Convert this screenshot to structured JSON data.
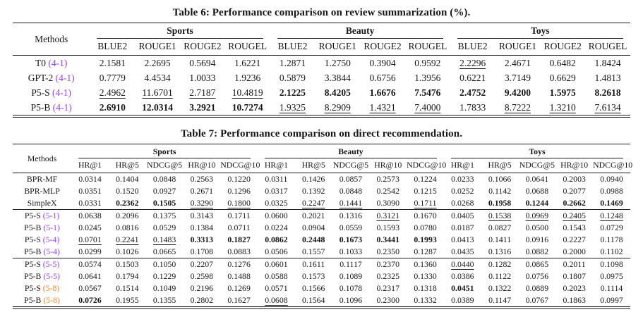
{
  "colors": {
    "purple": "#9440e8",
    "orange": "#e8862d",
    "text": "#161616"
  },
  "tables": [
    {
      "title": "Table 6: Performance comparison on review summarization (%).",
      "methods_header": "Methods",
      "groups": [
        "Sports",
        "Beauty",
        "Toys"
      ],
      "subcolumns": [
        "BLUE2",
        "ROUGE1",
        "ROUGE2",
        "ROUGEL"
      ],
      "row_groups": [
        {
          "rows": [
            {
              "method": "T0",
              "variant": "(4-1)",
              "variant_color": "purple",
              "values": [
                "2.1581",
                "2.2695",
                "0.5694",
                "1.6221",
                "1.2871",
                "1.2750",
                "0.3904",
                "0.9592",
                "2.2296",
                "2.4671",
                "0.6482",
                "1.8424"
              ],
              "styles": [
                "",
                "",
                "",
                "",
                "",
                "",
                "",
                "",
                "u",
                "",
                "",
                ""
              ]
            },
            {
              "method": "GPT-2",
              "variant": "(4-1)",
              "variant_color": "purple",
              "values": [
                "0.7779",
                "4.4534",
                "1.0033",
                "1.9236",
                "0.5879",
                "3.3844",
                "0.6756",
                "1.3956",
                "0.6221",
                "3.7149",
                "0.6629",
                "1.4813"
              ],
              "styles": [
                "",
                "",
                "",
                "",
                "",
                "",
                "",
                "",
                "",
                "",
                "",
                ""
              ]
            },
            {
              "method": "P5-S",
              "variant": "(4-1)",
              "variant_color": "purple",
              "values": [
                "2.4962",
                "11.6701",
                "2.7187",
                "10.4819",
                "2.1225",
                "8.4205",
                "1.6676",
                "7.5476",
                "2.4752",
                "9.4200",
                "1.5975",
                "8.2618"
              ],
              "styles": [
                "u",
                "u",
                "u",
                "u",
                "b",
                "b",
                "b",
                "b",
                "b",
                "b",
                "b",
                "b"
              ]
            },
            {
              "method": "P5-B",
              "variant": "(4-1)",
              "variant_color": "purple",
              "values": [
                "2.6910",
                "12.0314",
                "3.2921",
                "10.7274",
                "1.9325",
                "8.2909",
                "1.4321",
                "7.4000",
                "1.7833",
                "8.7222",
                "1.3210",
                "7.6134"
              ],
              "styles": [
                "b",
                "b",
                "b",
                "b",
                "u",
                "u",
                "u",
                "u",
                "",
                "u",
                "u",
                "u"
              ]
            }
          ]
        }
      ]
    },
    {
      "title": "Table 7: Performance comparison on direct recommendation.",
      "methods_header": "Methods",
      "groups": [
        "Sports",
        "Beauty",
        "Toys"
      ],
      "subcolumns": [
        "HR@1",
        "HR@5",
        "NDCG@5",
        "HR@10",
        "NDCG@10"
      ],
      "row_groups": [
        {
          "rows": [
            {
              "method": "BPR-MF",
              "variant": "",
              "variant_color": "",
              "values": [
                "0.0314",
                "0.1404",
                "0.0848",
                "0.2563",
                "0.1220",
                "0.0311",
                "0.1426",
                "0.0857",
                "0.2573",
                "0.1224",
                "0.0233",
                "0.1066",
                "0.0641",
                "0.2003",
                "0.0940"
              ],
              "styles": [
                "",
                "",
                "",
                "",
                "",
                "",
                "",
                "",
                "",
                "",
                "",
                "",
                "",
                "",
                ""
              ]
            },
            {
              "method": "BPR-MLP",
              "variant": "",
              "variant_color": "",
              "values": [
                "0.0351",
                "0.1520",
                "0.0927",
                "0.2671",
                "0.1296",
                "0.0317",
                "0.1392",
                "0.0848",
                "0.2542",
                "0.1215",
                "0.0252",
                "0.1142",
                "0.0688",
                "0.2077",
                "0.0988"
              ],
              "styles": [
                "",
                "",
                "",
                "",
                "",
                "",
                "",
                "",
                "",
                "",
                "",
                "",
                "",
                "",
                ""
              ]
            },
            {
              "method": "SimpleX",
              "variant": "",
              "variant_color": "",
              "values": [
                "0.0331",
                "0.2362",
                "0.1505",
                "0.3290",
                "0.1800",
                "0.0325",
                "0.2247",
                "0.1441",
                "0.3090",
                "0.1711",
                "0.0268",
                "0.1958",
                "0.1244",
                "0.2662",
                "0.1469"
              ],
              "styles": [
                "",
                "b",
                "b",
                "u",
                "u",
                "",
                "u",
                "u",
                "",
                "u",
                "",
                "b",
                "b",
                "b",
                "b"
              ]
            }
          ]
        },
        {
          "rows": [
            {
              "method": "P5-S",
              "variant": "(5-1)",
              "variant_color": "purple",
              "values": [
                "0.0638",
                "0.2096",
                "0.1375",
                "0.3143",
                "0.1711",
                "0.0600",
                "0.2021",
                "0.1316",
                "0.3121",
                "0.1670",
                "0.0405",
                "0.1538",
                "0.0969",
                "0.2405",
                "0.1248"
              ],
              "styles": [
                "",
                "",
                "",
                "",
                "",
                "",
                "",
                "",
                "u",
                "",
                "",
                "u",
                "u",
                "u",
                "u"
              ]
            },
            {
              "method": "P5-B",
              "variant": "(5-1)",
              "variant_color": "purple",
              "values": [
                "0.0245",
                "0.0816",
                "0.0529",
                "0.1384",
                "0.0711",
                "0.0224",
                "0.0904",
                "0.0559",
                "0.1593",
                "0.0780",
                "0.0187",
                "0.0827",
                "0.0500",
                "0.1543",
                "0.0729"
              ],
              "styles": [
                "",
                "",
                "",
                "",
                "",
                "",
                "",
                "",
                "",
                "",
                "",
                "",
                "",
                "",
                ""
              ]
            },
            {
              "method": "P5-S",
              "variant": "(5-4)",
              "variant_color": "purple",
              "values": [
                "0.0701",
                "0.2241",
                "0.1483",
                "0.3313",
                "0.1827",
                "0.0862",
                "0.2448",
                "0.1673",
                "0.3441",
                "0.1993",
                "0.0413",
                "0.1411",
                "0.0916",
                "0.2227",
                "0.1178"
              ],
              "styles": [
                "u",
                "u",
                "u",
                "b",
                "b",
                "b",
                "b",
                "b",
                "b",
                "b",
                "",
                "",
                "",
                "",
                ""
              ]
            },
            {
              "method": "P5-B",
              "variant": "(5-4)",
              "variant_color": "purple",
              "values": [
                "0.0299",
                "0.1026",
                "0.0665",
                "0.1708",
                "0.0883",
                "0.0506",
                "0.1557",
                "0.1033",
                "0.2350",
                "0.1287",
                "0.0435",
                "0.1316",
                "0.0882",
                "0.2000",
                "0.1102"
              ],
              "styles": [
                "",
                "",
                "",
                "",
                "",
                "",
                "",
                "",
                "",
                "",
                "",
                "",
                "",
                "",
                ""
              ]
            }
          ]
        },
        {
          "rows": [
            {
              "method": "P5-S",
              "variant": "(5-5)",
              "variant_color": "purple",
              "values": [
                "0.0574",
                "0.1503",
                "0.1050",
                "0.2207",
                "0.1276",
                "0.0601",
                "0.1611",
                "0.1117",
                "0.2370",
                "0.1360",
                "0.0440",
                "0.1282",
                "0.0865",
                "0.2011",
                "0.1098"
              ],
              "styles": [
                "",
                "",
                "",
                "",
                "",
                "",
                "",
                "",
                "",
                "",
                "u",
                "",
                "",
                "",
                ""
              ]
            },
            {
              "method": "P5-B",
              "variant": "(5-5)",
              "variant_color": "purple",
              "values": [
                "0.0641",
                "0.1794",
                "0.1229",
                "0.2598",
                "0.1488",
                "0.0588",
                "0.1573",
                "0.1089",
                "0.2325",
                "0.1330",
                "0.0386",
                "0.1122",
                "0.0756",
                "0.1807",
                "0.0975"
              ],
              "styles": [
                "",
                "",
                "",
                "",
                "",
                "",
                "",
                "",
                "",
                "",
                "",
                "",
                "",
                "",
                ""
              ]
            },
            {
              "method": "P5-S",
              "variant": "(5-8)",
              "variant_color": "orange",
              "values": [
                "0.0567",
                "0.1514",
                "0.1049",
                "0.2196",
                "0.1269",
                "0.0571",
                "0.1566",
                "0.1078",
                "0.2317",
                "0.1318",
                "0.0451",
                "0.1322",
                "0.0889",
                "0.2023",
                "0.1114"
              ],
              "styles": [
                "",
                "",
                "",
                "",
                "",
                "",
                "",
                "",
                "",
                "",
                "b",
                "",
                "",
                "",
                ""
              ]
            },
            {
              "method": "P5-B",
              "variant": "(5-8)",
              "variant_color": "orange",
              "values": [
                "0.0726",
                "0.1955",
                "0.1355",
                "0.2802",
                "0.1627",
                "0.0608",
                "0.1564",
                "0.1096",
                "0.2300",
                "0.1332",
                "0.0389",
                "0.1147",
                "0.0767",
                "0.1863",
                "0.0997"
              ],
              "styles": [
                "b",
                "",
                "",
                "",
                "",
                "u",
                "",
                "",
                "",
                "",
                "",
                "",
                "",
                "",
                ""
              ]
            }
          ]
        }
      ]
    }
  ]
}
